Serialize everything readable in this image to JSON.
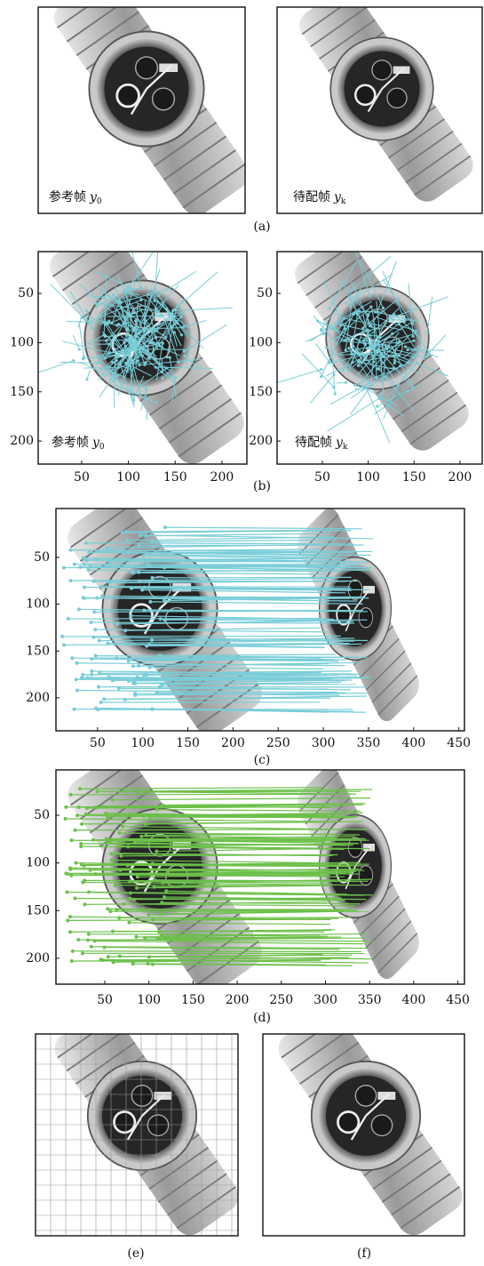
{
  "panel_a": {
    "label": "(a)",
    "left_caption": {
      "text": "参考帧",
      "var": "y",
      "sub": "0"
    },
    "right_caption": {
      "text": "待配帧",
      "var": "y",
      "sub": "k"
    }
  },
  "panel_b": {
    "label": "(b)",
    "left": {
      "xticks": [
        50,
        100,
        150,
        200
      ],
      "yticks": [
        50,
        100,
        150,
        200
      ],
      "caption": {
        "text": "参考帧",
        "var": "y",
        "sub": "0"
      }
    },
    "right": {
      "xticks": [
        50,
        100,
        150,
        200
      ],
      "yticks": [
        50,
        100,
        150,
        200
      ],
      "caption": {
        "text": "待配帧",
        "var": "y",
        "sub": "k"
      }
    }
  },
  "panel_c": {
    "label": "(c)",
    "xticks": [
      50,
      100,
      150,
      200,
      250,
      300,
      350,
      400,
      450
    ],
    "yticks": [
      50,
      100,
      150,
      200
    ]
  },
  "panel_d": {
    "label": "(d)",
    "xticks": [
      50,
      100,
      150,
      200,
      250,
      300,
      350,
      400,
      450
    ],
    "yticks": [
      50,
      100,
      150,
      200
    ]
  },
  "panel_e": {
    "label": "(e)"
  },
  "panel_f": {
    "label": "(f)"
  }
}
